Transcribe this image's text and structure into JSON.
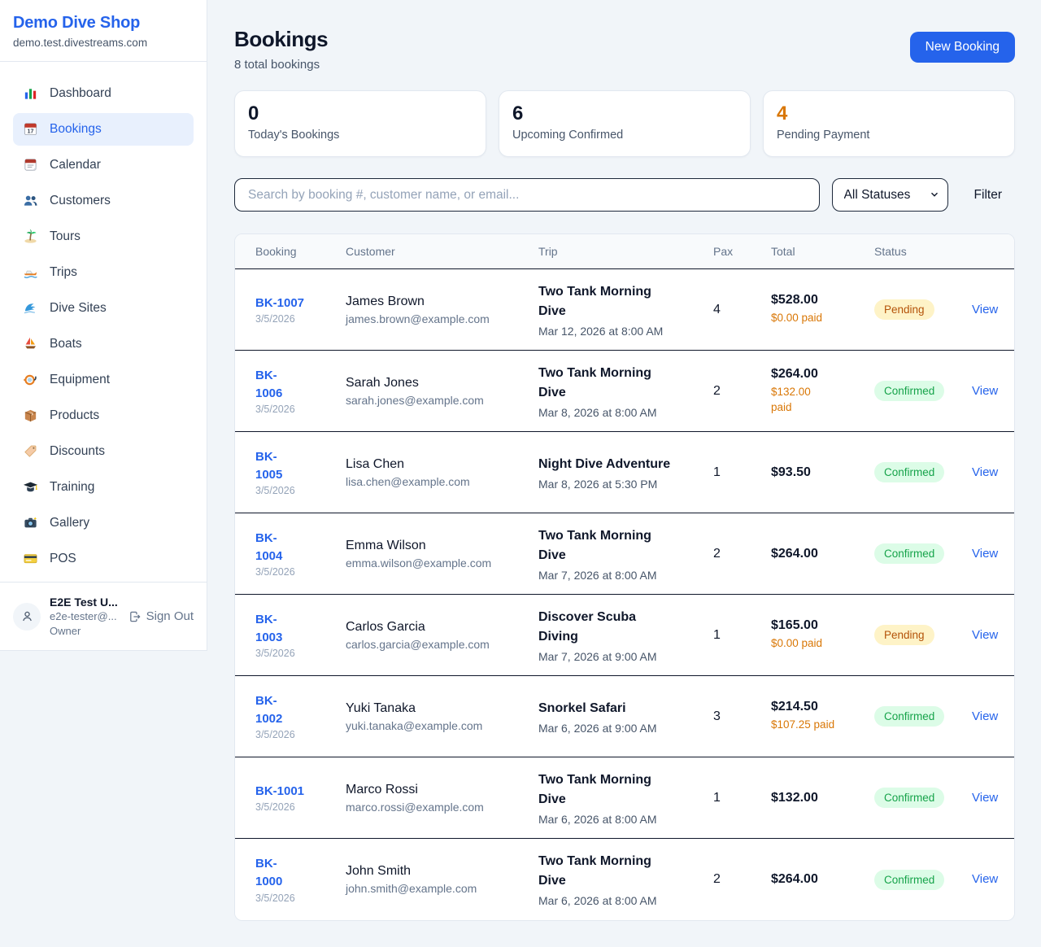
{
  "sidebar": {
    "brand": "Demo Dive Shop",
    "domain": "demo.test.divestreams.com",
    "items": [
      {
        "label": "Dashboard",
        "icon": "bar-chart-icon",
        "active": false
      },
      {
        "label": "Bookings",
        "icon": "booking-calendar-icon",
        "active": true
      },
      {
        "label": "Calendar",
        "icon": "calendar-icon",
        "active": false
      },
      {
        "label": "Customers",
        "icon": "users-icon",
        "active": false
      },
      {
        "label": "Tours",
        "icon": "island-icon",
        "active": false
      },
      {
        "label": "Trips",
        "icon": "speedboat-icon",
        "active": false
      },
      {
        "label": "Dive Sites",
        "icon": "wave-icon",
        "active": false
      },
      {
        "label": "Boats",
        "icon": "sailboat-icon",
        "active": false
      },
      {
        "label": "Equipment",
        "icon": "diving-mask-icon",
        "active": false
      },
      {
        "label": "Products",
        "icon": "package-icon",
        "active": false
      },
      {
        "label": "Discounts",
        "icon": "tag-icon",
        "active": false
      },
      {
        "label": "Training",
        "icon": "graduation-cap-icon",
        "active": false
      },
      {
        "label": "Gallery",
        "icon": "camera-icon",
        "active": false
      },
      {
        "label": "POS",
        "icon": "credit-card-icon",
        "active": false
      }
    ],
    "user": {
      "name": "E2E Test U...",
      "email": "e2e-tester@...",
      "role": "Owner",
      "sign_out": "Sign Out"
    }
  },
  "header": {
    "title": "Bookings",
    "subtitle": "8 total bookings",
    "new_booking_label": "New Booking"
  },
  "stats": [
    {
      "value": "0",
      "label": "Today's Bookings",
      "color": "#0f172a"
    },
    {
      "value": "6",
      "label": "Upcoming Confirmed",
      "color": "#0f172a"
    },
    {
      "value": "4",
      "label": "Pending Payment",
      "color": "#d97706"
    }
  ],
  "filters": {
    "search_placeholder": "Search by booking #, customer name, or email...",
    "status_selected": "All Statuses",
    "filter_label": "Filter"
  },
  "table": {
    "columns": [
      "Booking",
      "Customer",
      "Trip",
      "Pax",
      "Total",
      "Status"
    ],
    "view_label": "View",
    "status_styles": {
      "Pending": {
        "color": "#b45309",
        "bg": "#fef3c7"
      },
      "Confirmed": {
        "color": "#16a34a",
        "bg": "#dcfce7"
      }
    },
    "rows": [
      {
        "id": "BK-1007",
        "date": "3/5/2026",
        "customer": "James Brown",
        "email": "james.brown@example.com",
        "trip": "Two Tank Morning Dive",
        "trip_time": "Mar 12, 2026 at 8:00 AM",
        "pax": "4",
        "total": "$528.00",
        "paid": "$0.00 paid",
        "status": "Pending",
        "id_two_line": false,
        "trip_two_line": true,
        "paid_two_line": false
      },
      {
        "id": "BK-1006",
        "date": "3/5/2026",
        "customer": "Sarah Jones",
        "email": "sarah.jones@example.com",
        "trip": "Two Tank Morning Dive",
        "trip_time": "Mar 8, 2026 at 8:00 AM",
        "pax": "2",
        "total": "$264.00",
        "paid": "$132.00 paid",
        "status": "Confirmed",
        "id_two_line": true,
        "trip_two_line": true,
        "paid_two_line": true
      },
      {
        "id": "BK-1005",
        "date": "3/5/2026",
        "customer": "Lisa Chen",
        "email": "lisa.chen@example.com",
        "trip": "Night Dive Adventure",
        "trip_time": "Mar 8, 2026 at 5:30 PM",
        "pax": "1",
        "total": "$93.50",
        "paid": "",
        "status": "Confirmed",
        "id_two_line": true,
        "trip_two_line": false,
        "paid_two_line": false
      },
      {
        "id": "BK-1004",
        "date": "3/5/2026",
        "customer": "Emma Wilson",
        "email": "emma.wilson@example.com",
        "trip": "Two Tank Morning Dive",
        "trip_time": "Mar 7, 2026 at 8:00 AM",
        "pax": "2",
        "total": "$264.00",
        "paid": "",
        "status": "Confirmed",
        "id_two_line": true,
        "trip_two_line": true,
        "paid_two_line": false
      },
      {
        "id": "BK-1003",
        "date": "3/5/2026",
        "customer": "Carlos Garcia",
        "email": "carlos.garcia@example.com",
        "trip": "Discover Scuba Diving",
        "trip_time": "Mar 7, 2026 at 9:00 AM",
        "pax": "1",
        "total": "$165.00",
        "paid": "$0.00 paid",
        "status": "Pending",
        "id_two_line": true,
        "trip_two_line": true,
        "paid_two_line": false
      },
      {
        "id": "BK-1002",
        "date": "3/5/2026",
        "customer": "Yuki Tanaka",
        "email": "yuki.tanaka@example.com",
        "trip": "Snorkel Safari",
        "trip_time": "Mar 6, 2026 at 9:00 AM",
        "pax": "3",
        "total": "$214.50",
        "paid": "$107.25 paid",
        "status": "Confirmed",
        "id_two_line": true,
        "trip_two_line": false,
        "paid_two_line": false
      },
      {
        "id": "BK-1001",
        "date": "3/5/2026",
        "customer": "Marco Rossi",
        "email": "marco.rossi@example.com",
        "trip": "Two Tank Morning Dive",
        "trip_time": "Mar 6, 2026 at 8:00 AM",
        "pax": "1",
        "total": "$132.00",
        "paid": "",
        "status": "Confirmed",
        "id_two_line": false,
        "trip_two_line": true,
        "paid_two_line": false
      },
      {
        "id": "BK-1000",
        "date": "3/5/2026",
        "customer": "John Smith",
        "email": "john.smith@example.com",
        "trip": "Two Tank Morning Dive",
        "trip_time": "Mar 6, 2026 at 8:00 AM",
        "pax": "2",
        "total": "$264.00",
        "paid": "",
        "status": "Confirmed",
        "id_two_line": true,
        "trip_two_line": true,
        "paid_two_line": false
      }
    ]
  }
}
